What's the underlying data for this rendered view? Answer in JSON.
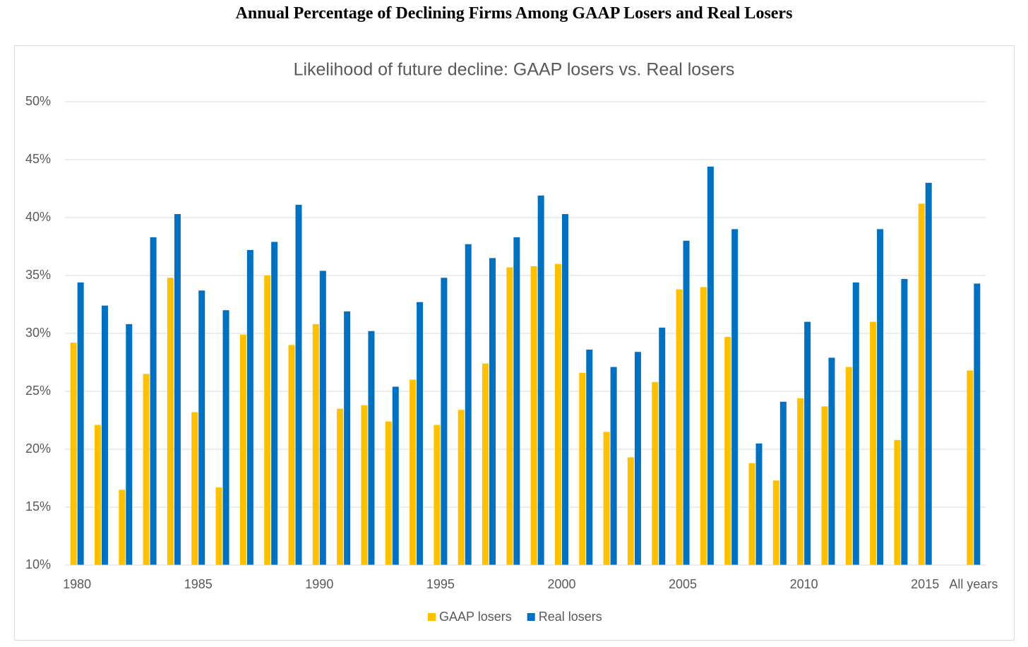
{
  "heading": "Annual Percentage of Declining Firms Among GAAP Losers and Real Losers",
  "chart_data": {
    "type": "bar",
    "title": "Likelihood of future decline: GAAP losers vs. Real losers",
    "categories": [
      "1980",
      null,
      null,
      null,
      null,
      "1985",
      null,
      null,
      null,
      null,
      "1990",
      null,
      null,
      null,
      null,
      "1995",
      null,
      null,
      null,
      null,
      "2000",
      null,
      null,
      null,
      null,
      "2005",
      null,
      null,
      null,
      null,
      "2010",
      null,
      null,
      null,
      null,
      "2015",
      null,
      "All years"
    ],
    "series": [
      {
        "name": "GAAP losers",
        "color": "#ffc000",
        "values": [
          29.2,
          22.1,
          16.5,
          26.5,
          34.8,
          23.2,
          16.7,
          29.9,
          35.0,
          29.0,
          30.8,
          23.5,
          23.8,
          22.4,
          26.0,
          22.1,
          23.4,
          27.4,
          35.7,
          35.8,
          36.0,
          26.6,
          21.5,
          19.3,
          25.8,
          33.8,
          34.0,
          29.7,
          18.8,
          17.3,
          24.4,
          23.7,
          27.1,
          31.0,
          20.8,
          41.2,
          null,
          26.8
        ]
      },
      {
        "name": "Real losers",
        "color": "#0070c0",
        "values": [
          34.4,
          32.4,
          30.8,
          38.3,
          40.3,
          33.7,
          32.0,
          37.2,
          37.9,
          41.1,
          35.4,
          31.9,
          30.2,
          25.4,
          32.7,
          34.8,
          37.7,
          36.5,
          38.3,
          41.9,
          40.3,
          28.6,
          27.1,
          28.4,
          30.5,
          38.0,
          44.4,
          39.0,
          20.5,
          24.1,
          31.0,
          27.9,
          34.4,
          39.0,
          34.7,
          43.0,
          null,
          34.3
        ]
      }
    ],
    "ylim": [
      10,
      50
    ],
    "yticks": [
      {
        "value": 10,
        "label": "10%"
      },
      {
        "value": 15,
        "label": "15%"
      },
      {
        "value": 20,
        "label": "20%"
      },
      {
        "value": 25,
        "label": "25%"
      },
      {
        "value": 30,
        "label": "30%"
      },
      {
        "value": 35,
        "label": "35%"
      },
      {
        "value": 40,
        "label": "40%"
      },
      {
        "value": 45,
        "label": "45%"
      },
      {
        "value": 50,
        "label": "50%"
      }
    ],
    "grid": true,
    "legend": "bottom"
  }
}
